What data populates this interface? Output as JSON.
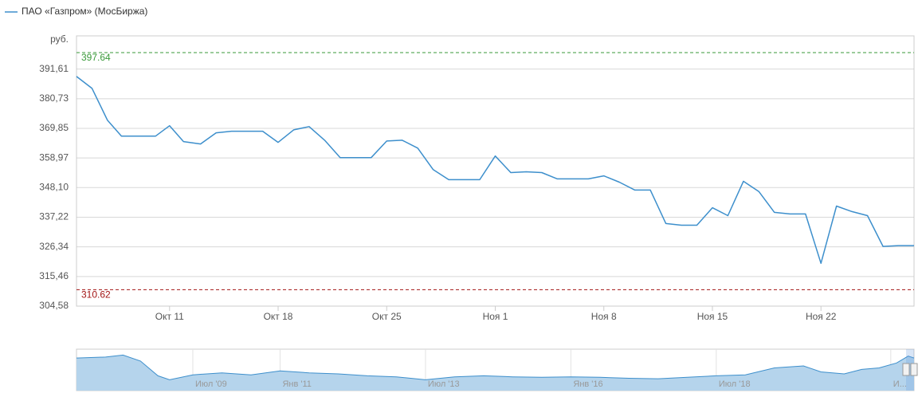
{
  "chart_data": [
    {
      "type": "line",
      "y_unit": "руб.",
      "x": [
        0,
        1,
        2,
        2.9,
        5.1,
        6,
        6.9,
        8,
        9,
        10,
        12,
        13,
        14,
        15,
        16,
        17,
        18,
        19,
        20,
        21,
        22,
        23,
        24,
        25,
        26,
        27,
        28,
        29,
        30,
        31,
        32,
        33,
        34,
        35,
        36,
        37,
        38,
        39,
        40,
        41,
        42,
        43,
        44,
        45,
        46,
        47,
        48,
        49,
        50,
        51,
        52,
        53,
        54
      ],
      "series": [
        {
          "name": "ПАО «Газпром» (МосБиржа)",
          "color": "#3d8fcc",
          "values": [
            388.9,
            384.5,
            372.8,
            367.0,
            367.0,
            370.8,
            365.0,
            364.1,
            368.2,
            368.8,
            368.8,
            364.7,
            369.3,
            370.5,
            365.5,
            359.1,
            359.1,
            359.1,
            365.2,
            365.5,
            362.6,
            354.7,
            351.0,
            351.0,
            351.0,
            359.7,
            353.6,
            353.9,
            353.6,
            351.3,
            351.3,
            351.3,
            352.4,
            350.1,
            347.2,
            347.2,
            334.9,
            334.3,
            334.3,
            340.7,
            337.8,
            350.4,
            346.6,
            339.0,
            338.4,
            338.4,
            320.3,
            341.3,
            339.3,
            337.8,
            326.5,
            326.8,
            326.8
          ]
        }
      ],
      "plot_lines": [
        {
          "value": 397.64,
          "color": "#3a9a3a"
        },
        {
          "value": 310.62,
          "color": "#a31515"
        }
      ],
      "xlim": [
        0,
        54
      ],
      "xticks": [
        {
          "value": 6,
          "label": "Окт 11"
        },
        {
          "value": 13,
          "label": "Окт 18"
        },
        {
          "value": 20,
          "label": "Окт 25"
        },
        {
          "value": 27,
          "label": "Ноя 1"
        },
        {
          "value": 34,
          "label": "Ноя 8"
        },
        {
          "value": 41,
          "label": "Ноя 15"
        },
        {
          "value": 48,
          "label": "Ноя 22"
        }
      ],
      "ylim": [
        304.58,
        403.8
      ],
      "yticks": [
        {
          "value": 304.58,
          "label": "304,58"
        },
        {
          "value": 315.46,
          "label": "315,46"
        },
        {
          "value": 326.34,
          "label": "326,34"
        },
        {
          "value": 337.22,
          "label": "337,22"
        },
        {
          "value": 348.1,
          "label": "348,10"
        },
        {
          "value": 358.97,
          "label": "358,97"
        },
        {
          "value": 369.85,
          "label": "369,85"
        },
        {
          "value": 380.73,
          "label": "380,73"
        },
        {
          "value": 391.61,
          "label": "391,61"
        }
      ],
      "grid": true
    },
    {
      "type": "area",
      "x": [
        2007.5,
        2008.0,
        2008.3,
        2008.6,
        2008.9,
        2009.1,
        2009.5,
        2010.0,
        2010.5,
        2011.0,
        2011.5,
        2012.0,
        2012.5,
        2013.0,
        2013.5,
        2014.0,
        2014.5,
        2015.0,
        2015.5,
        2016.0,
        2016.5,
        2017.0,
        2017.5,
        2018.0,
        2018.5,
        2019.0,
        2019.5,
        2020.0,
        2020.3,
        2020.7,
        2021.0,
        2021.3,
        2021.6,
        2021.8,
        2021.9
      ],
      "values": [
        330,
        340,
        360,
        300,
        150,
        110,
        160,
        180,
        160,
        200,
        180,
        170,
        150,
        140,
        110,
        140,
        150,
        140,
        135,
        140,
        135,
        125,
        120,
        135,
        150,
        160,
        230,
        250,
        190,
        170,
        215,
        230,
        280,
        350,
        330
      ],
      "color": "#3d8fcc",
      "xlim": [
        2007.5,
        2021.9
      ],
      "ylim": [
        0,
        420
      ],
      "xticks": [
        {
          "value": 2009.5,
          "label": "Июл '09"
        },
        {
          "value": 2011.0,
          "label": "Янв '11"
        },
        {
          "value": 2013.5,
          "label": "Июл '13"
        },
        {
          "value": 2016.0,
          "label": "Янв '16"
        },
        {
          "value": 2018.5,
          "label": "Июл '18"
        },
        {
          "value": 2021.5,
          "label": "И..."
        }
      ]
    }
  ]
}
